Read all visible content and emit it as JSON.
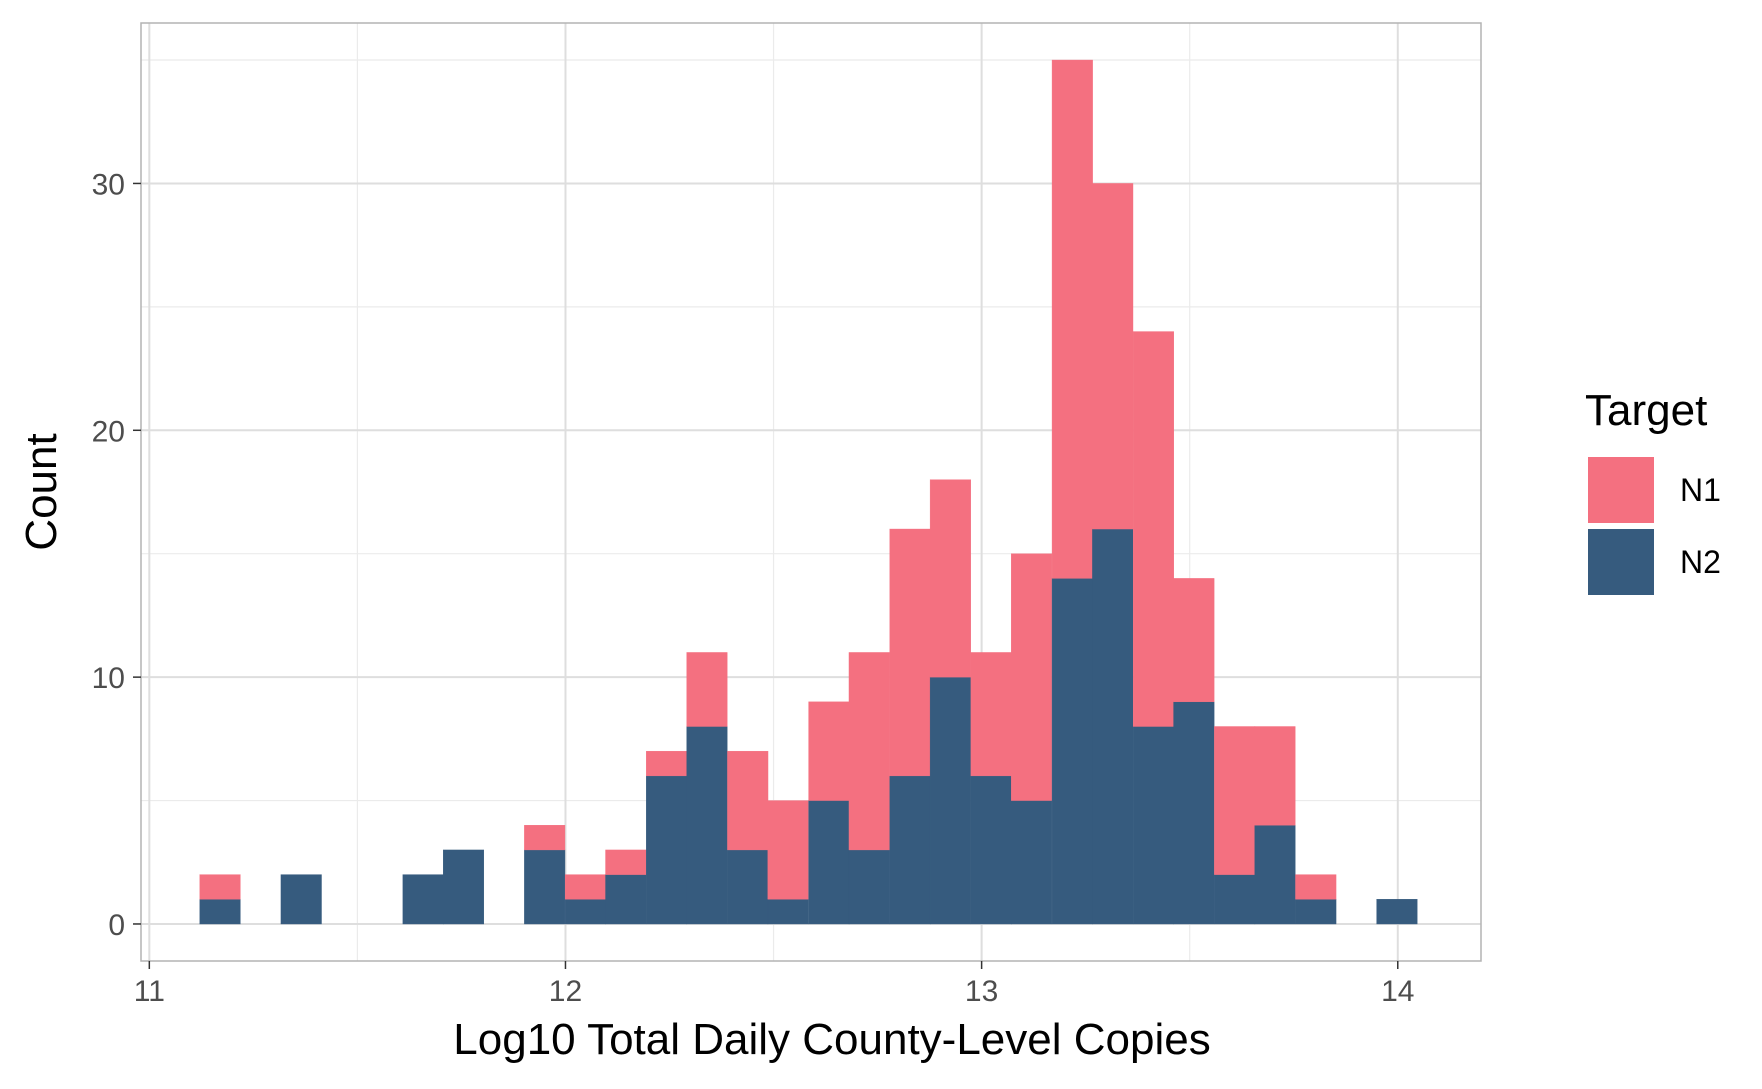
{
  "chart_data": {
    "type": "bar",
    "stacked": true,
    "xlabel": "Log10 Total Daily County-Level Copies",
    "ylabel": "Count",
    "xlim": [
      10.98,
      14.2
    ],
    "ylim": [
      -1.5,
      36.5
    ],
    "xticks": [
      11,
      12,
      13,
      14
    ],
    "yticks": [
      0,
      10,
      20,
      30
    ],
    "bin_width": 0.0975,
    "grid": true,
    "legend": {
      "title": "Target",
      "position": "right",
      "entries": [
        "N1",
        "N2"
      ]
    },
    "colors": {
      "N1": "#F47080",
      "N2": "#365B7E"
    },
    "bins": [
      {
        "x": 11.17,
        "N1": 1,
        "N2": 1
      },
      {
        "x": 11.365,
        "N1": 0,
        "N2": 2
      },
      {
        "x": 11.658,
        "N1": 0,
        "N2": 2
      },
      {
        "x": 11.755,
        "N1": 0,
        "N2": 3
      },
      {
        "x": 11.95,
        "N1": 1,
        "N2": 3
      },
      {
        "x": 12.048,
        "N1": 1,
        "N2": 1
      },
      {
        "x": 12.145,
        "N1": 1,
        "N2": 2
      },
      {
        "x": 12.243,
        "N1": 1,
        "N2": 6
      },
      {
        "x": 12.34,
        "N1": 3,
        "N2": 8
      },
      {
        "x": 12.438,
        "N1": 4,
        "N2": 3
      },
      {
        "x": 12.535,
        "N1": 4,
        "N2": 1
      },
      {
        "x": 12.633,
        "N1": 4,
        "N2": 5
      },
      {
        "x": 12.73,
        "N1": 8,
        "N2": 3
      },
      {
        "x": 12.828,
        "N1": 10,
        "N2": 6
      },
      {
        "x": 12.925,
        "N1": 8,
        "N2": 10
      },
      {
        "x": 13.023,
        "N1": 5,
        "N2": 6
      },
      {
        "x": 13.12,
        "N1": 10,
        "N2": 5
      },
      {
        "x": 13.218,
        "N1": 21,
        "N2": 14
      },
      {
        "x": 13.315,
        "N1": 14,
        "N2": 16
      },
      {
        "x": 13.413,
        "N1": 16,
        "N2": 8
      },
      {
        "x": 13.51,
        "N1": 5,
        "N2": 9
      },
      {
        "x": 13.608,
        "N1": 6,
        "N2": 2
      },
      {
        "x": 13.705,
        "N1": 4,
        "N2": 4
      },
      {
        "x": 13.803,
        "N1": 1,
        "N2": 1
      },
      {
        "x": 13.998,
        "N1": 0,
        "N2": 1
      }
    ]
  }
}
